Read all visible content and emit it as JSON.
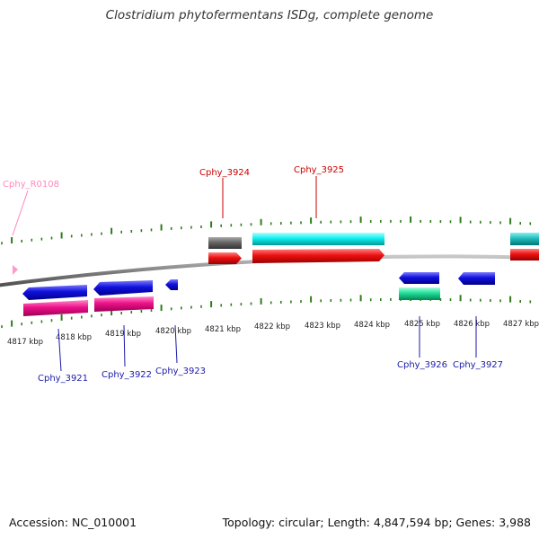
{
  "title": "Clostridium phytofermentans ISDg, complete genome",
  "footer": {
    "accession": "Accession: NC_010001",
    "summary": "Topology: circular; Length: 4,847,594 bp; Genes: 3,988"
  },
  "colors": {
    "backbone": "#808080",
    "tick": "#2e7d1a",
    "forward_label": "#cc0000",
    "reverse_label": "#1a1aaa",
    "rna_label": "#ff88bb",
    "gene_blue": "#1010dd",
    "gene_red": "#ee1111",
    "gene_pink": "#ee1188",
    "gene_cyan": "#11eeee",
    "gene_grey": "#666666",
    "gene_teal": "#22bbbb",
    "gene_green": "#22dd99",
    "rna_pink": "#ff99cc"
  },
  "kbp_labels": [
    "4817 kbp",
    "4818 kbp",
    "4819 kbp",
    "4820 kbp",
    "4821 kbp",
    "4822 kbp",
    "4823 kbp",
    "4824 kbp",
    "4825 kbp",
    "4826 kbp",
    "4827 kbp"
  ],
  "gene_labels": {
    "cphy_r0108": "Cphy_R0108",
    "cphy_3921": "Cphy_3921",
    "cphy_3922": "Cphy_3922",
    "cphy_3923": "Cphy_3923",
    "cphy_3924": "Cphy_3924",
    "cphy_3925": "Cphy_3925",
    "cphy_3926": "Cphy_3926",
    "cphy_3927": "Cphy_3927"
  }
}
